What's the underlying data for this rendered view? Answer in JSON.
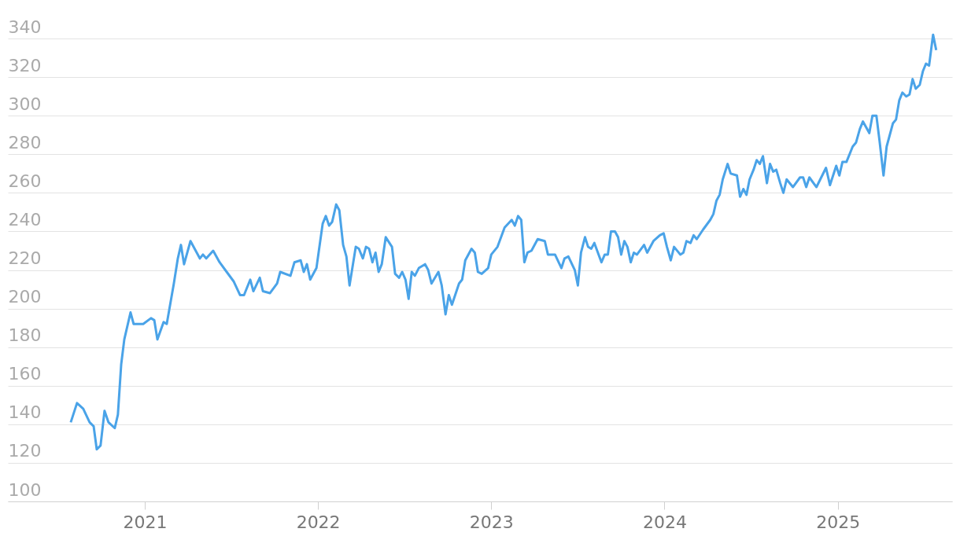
{
  "chart_data": {
    "type": "line",
    "xlim": [
      2020.21,
      2025.66
    ],
    "xticks": [
      2021,
      2022,
      2023,
      2024,
      2025
    ],
    "ylim": [
      100,
      360
    ],
    "yticks": [
      100,
      120,
      140,
      160,
      180,
      200,
      220,
      240,
      260,
      280,
      300,
      320,
      340
    ],
    "grid": "y",
    "marker": "none",
    "line_style": "solid",
    "series": [
      {
        "color": "#4aa3e8",
        "x": [
          2020.573,
          2020.609,
          2020.645,
          2020.682,
          2020.705,
          2020.723,
          2020.745,
          2020.768,
          2020.791,
          2020.827,
          2020.845,
          2020.864,
          2020.882,
          2020.918,
          2020.936,
          2020.991,
          2021.036,
          2021.055,
          2021.073,
          2021.109,
          2021.127,
          2021.168,
          2021.191,
          2021.209,
          2021.227,
          2021.264,
          2021.318,
          2021.336,
          2021.355,
          2021.395,
          2021.432,
          2021.473,
          2021.514,
          2021.55,
          2021.573,
          2021.609,
          2021.627,
          2021.664,
          2021.682,
          2021.723,
          2021.764,
          2021.782,
          2021.841,
          2021.864,
          2021.9,
          2021.918,
          2021.936,
          2021.955,
          2021.991,
          2022.005,
          2022.027,
          2022.045,
          2022.064,
          2022.082,
          2022.105,
          2022.123,
          2022.145,
          2022.164,
          2022.182,
          2022.218,
          2022.236,
          2022.259,
          2022.277,
          2022.295,
          2022.314,
          2022.332,
          2022.35,
          2022.368,
          2022.391,
          2022.427,
          2022.445,
          2022.468,
          2022.486,
          2022.505,
          2022.523,
          2022.541,
          2022.559,
          2022.582,
          2022.618,
          2022.636,
          2022.655,
          2022.695,
          2022.714,
          2022.736,
          2022.755,
          2022.773,
          2022.814,
          2022.832,
          2022.85,
          2022.886,
          2022.905,
          2022.923,
          2022.945,
          2022.982,
          2023.0,
          2023.036,
          2023.077,
          2023.118,
          2023.136,
          2023.155,
          2023.173,
          2023.191,
          2023.209,
          2023.232,
          2023.268,
          2023.309,
          2023.327,
          2023.368,
          2023.405,
          2023.423,
          2023.445,
          2023.482,
          2023.5,
          2023.518,
          2023.541,
          2023.559,
          2023.577,
          2023.595,
          2023.636,
          2023.655,
          2023.673,
          2023.691,
          2023.714,
          2023.732,
          2023.75,
          2023.768,
          2023.786,
          2023.805,
          2023.823,
          2023.841,
          2023.882,
          2023.9,
          2023.936,
          2023.973,
          2023.995,
          2024.014,
          2024.036,
          2024.055,
          2024.091,
          2024.109,
          2024.127,
          2024.15,
          2024.168,
          2024.186,
          2024.223,
          2024.264,
          2024.282,
          2024.3,
          2024.318,
          2024.336,
          2024.364,
          2024.382,
          2024.418,
          2024.436,
          2024.455,
          2024.473,
          2024.491,
          2024.514,
          2024.532,
          2024.55,
          2024.568,
          2024.591,
          2024.609,
          2024.627,
          2024.645,
          2024.668,
          2024.686,
          2024.705,
          2024.741,
          2024.782,
          2024.8,
          2024.818,
          2024.836,
          2024.877,
          2024.932,
          2024.955,
          2024.991,
          2025.009,
          2025.027,
          2025.05,
          2025.086,
          2025.105,
          2025.127,
          2025.145,
          2025.182,
          2025.2,
          2025.223,
          2025.241,
          2025.264,
          2025.282,
          2025.318,
          2025.336,
          2025.355,
          2025.373,
          2025.395,
          2025.414,
          2025.432,
          2025.45,
          2025.473,
          2025.491,
          2025.509,
          2025.527,
          2025.55,
          2025.568
        ],
        "values": [
          141,
          151,
          148,
          141,
          139,
          127,
          129,
          147,
          141,
          138,
          145,
          171,
          184,
          198,
          192,
          192,
          195,
          194,
          184,
          193,
          192,
          213,
          226,
          233,
          223,
          235,
          226,
          228,
          226,
          230,
          224,
          219,
          214,
          207,
          207,
          215,
          209,
          216,
          209,
          208,
          213,
          219,
          217,
          224,
          225,
          219,
          223,
          215,
          221,
          230,
          244,
          248,
          243,
          245,
          254,
          251,
          233,
          227,
          212,
          232,
          231,
          226,
          232,
          231,
          224,
          229,
          219,
          223,
          237,
          232,
          218,
          216,
          219,
          215,
          205,
          219,
          217,
          221,
          223,
          220,
          213,
          219,
          212,
          197,
          207,
          202,
          213,
          215,
          225,
          231,
          229,
          219,
          218,
          221,
          228,
          232,
          242,
          246,
          243,
          248,
          246,
          224,
          229,
          230,
          236,
          235,
          228,
          228,
          221,
          226,
          227,
          220,
          212,
          229,
          237,
          232,
          231,
          234,
          224,
          228,
          228,
          240,
          240,
          237,
          228,
          235,
          232,
          224,
          229,
          228,
          233,
          229,
          235,
          238,
          239,
          232,
          225,
          232,
          228,
          229,
          235,
          234,
          238,
          236,
          241,
          246,
          249,
          256,
          259,
          267,
          275,
          270,
          269,
          258,
          262,
          259,
          267,
          272,
          277,
          275,
          279,
          265,
          275,
          271,
          272,
          265,
          260,
          267,
          263,
          268,
          268,
          263,
          268,
          263,
          273,
          264,
          274,
          269,
          276,
          276,
          284,
          286,
          293,
          297,
          291,
          300,
          300,
          287,
          269,
          284,
          296,
          298,
          308,
          312,
          310,
          311,
          319,
          314,
          316,
          323,
          327,
          326,
          342,
          334
        ]
      }
    ]
  }
}
